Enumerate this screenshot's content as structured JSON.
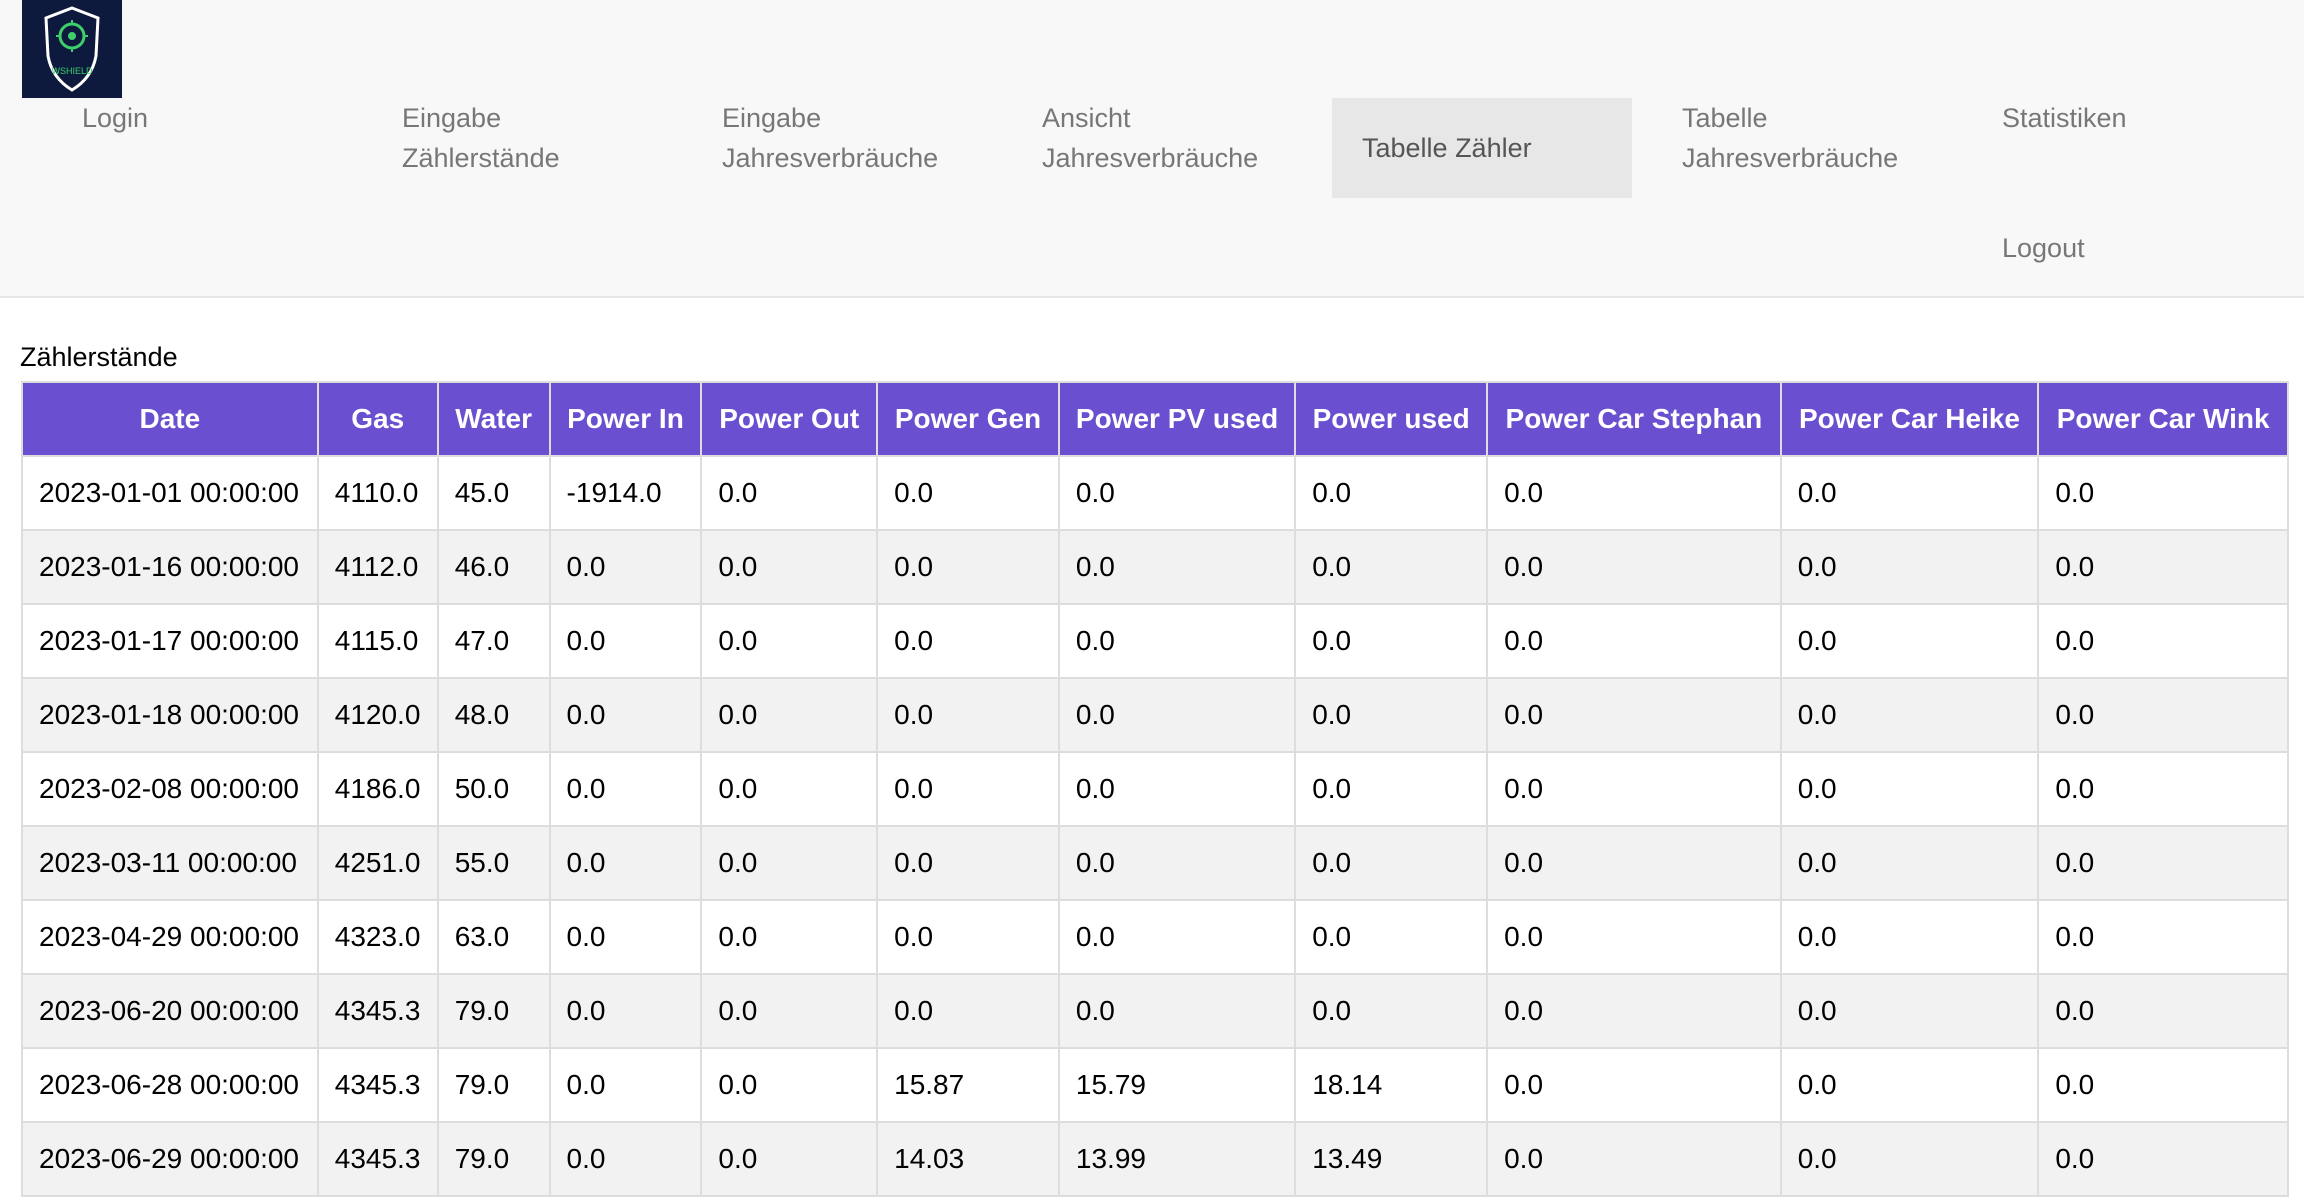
{
  "nav": {
    "logo_text": "WSHIELD",
    "items": [
      {
        "lines": [
          "Login"
        ]
      },
      {
        "lines": [
          "Eingabe",
          "Zählerstände"
        ]
      },
      {
        "lines": [
          "Eingabe",
          "Jahresverbräuche"
        ]
      },
      {
        "lines": [
          "Ansicht",
          "Jahresverbräuche"
        ]
      },
      {
        "lines": [
          "Tabelle Zähler"
        ],
        "active": true
      },
      {
        "lines": [
          "Tabelle",
          "Jahresverbräuche"
        ]
      },
      {
        "lines": [
          "Statistiken"
        ]
      },
      {
        "lines": [
          "Logout"
        ]
      }
    ]
  },
  "section_title": "Zählerstände",
  "table": {
    "headers": [
      "Date",
      "Gas",
      "Water",
      "Power In",
      "Power Out",
      "Power Gen",
      "Power PV used",
      "Power used",
      "Power Car Stephan",
      "Power Car Heike",
      "Power Car Wink"
    ],
    "rows": [
      [
        "2023-01-01 00:00:00",
        "4110.0",
        "45.0",
        "-1914.0",
        "0.0",
        "0.0",
        "0.0",
        "0.0",
        "0.0",
        "0.0",
        "0.0"
      ],
      [
        "2023-01-16 00:00:00",
        "4112.0",
        "46.0",
        "0.0",
        "0.0",
        "0.0",
        "0.0",
        "0.0",
        "0.0",
        "0.0",
        "0.0"
      ],
      [
        "2023-01-17 00:00:00",
        "4115.0",
        "47.0",
        "0.0",
        "0.0",
        "0.0",
        "0.0",
        "0.0",
        "0.0",
        "0.0",
        "0.0"
      ],
      [
        "2023-01-18 00:00:00",
        "4120.0",
        "48.0",
        "0.0",
        "0.0",
        "0.0",
        "0.0",
        "0.0",
        "0.0",
        "0.0",
        "0.0"
      ],
      [
        "2023-02-08 00:00:00",
        "4186.0",
        "50.0",
        "0.0",
        "0.0",
        "0.0",
        "0.0",
        "0.0",
        "0.0",
        "0.0",
        "0.0"
      ],
      [
        "2023-03-11 00:00:00",
        "4251.0",
        "55.0",
        "0.0",
        "0.0",
        "0.0",
        "0.0",
        "0.0",
        "0.0",
        "0.0",
        "0.0"
      ],
      [
        "2023-04-29 00:00:00",
        "4323.0",
        "63.0",
        "0.0",
        "0.0",
        "0.0",
        "0.0",
        "0.0",
        "0.0",
        "0.0",
        "0.0"
      ],
      [
        "2023-06-20 00:00:00",
        "4345.3",
        "79.0",
        "0.0",
        "0.0",
        "0.0",
        "0.0",
        "0.0",
        "0.0",
        "0.0",
        "0.0"
      ],
      [
        "2023-06-28 00:00:00",
        "4345.3",
        "79.0",
        "0.0",
        "0.0",
        "15.87",
        "15.79",
        "18.14",
        "0.0",
        "0.0",
        "0.0"
      ],
      [
        "2023-06-29 00:00:00",
        "4345.3",
        "79.0",
        "0.0",
        "0.0",
        "14.03",
        "13.99",
        "13.49",
        "0.0",
        "0.0",
        "0.0"
      ]
    ]
  },
  "colors": {
    "header_bg": "#6a4fd0",
    "navbar_bg": "#f8f8f8",
    "logo_bg": "#0e1a3d",
    "logo_accent": "#3ecf6a"
  }
}
